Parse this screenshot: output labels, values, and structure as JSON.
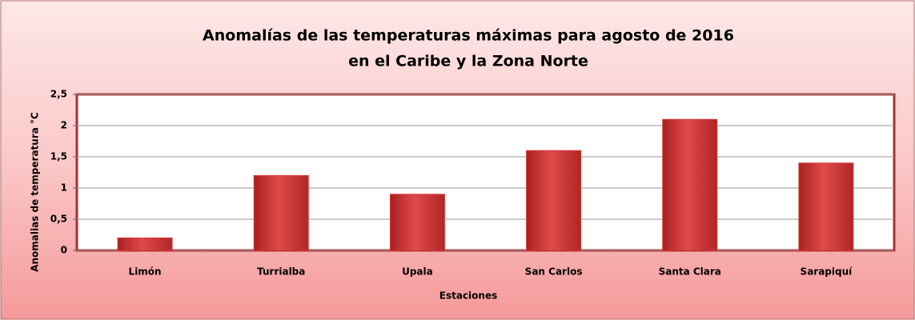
{
  "chart_data": {
    "type": "bar",
    "title": [
      "Anomalías de las temperaturas máximas para agosto de 2016",
      "en el Caribe y la Zona Norte"
    ],
    "xlabel": "Estaciones",
    "ylabel": "Anomalias de temperatura °C",
    "categories": [
      "Limón",
      "Turrialba",
      "Upala",
      "San Carlos",
      "Santa Clara",
      "Sarapiquí"
    ],
    "values": [
      0.2,
      1.2,
      0.9,
      1.6,
      2.1,
      1.4
    ],
    "color": "#d63a3a",
    "ylim": [
      0,
      2.5
    ],
    "yticks": [
      0,
      {
        "value": 0.5,
        "label": "0,5"
      },
      1,
      {
        "value": 1.5,
        "label": "1,5"
      },
      2,
      {
        "value": 2.5,
        "label": "2,5"
      }
    ],
    "grid": true
  }
}
